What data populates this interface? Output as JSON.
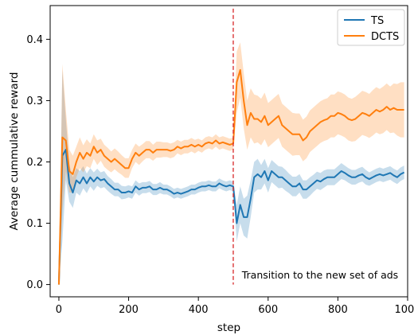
{
  "chart_data": {
    "type": "line",
    "xlabel": "step",
    "ylabel": "Average cummulative reward",
    "xlim": [
      -25,
      1000
    ],
    "ylim": [
      -0.02,
      0.455
    ],
    "xticks": [
      0,
      200,
      400,
      600,
      800,
      1000
    ],
    "yticks": [
      0.0,
      0.1,
      0.2,
      0.3,
      0.4
    ],
    "xtick_labels": [
      "0",
      "200",
      "400",
      "600",
      "800",
      "1000"
    ],
    "ytick_labels": [
      "0.0",
      "0.1",
      "0.2",
      "0.3",
      "0.4"
    ],
    "grid": false,
    "legend_position": "top-right",
    "vline": {
      "x": 500,
      "y_top": 0.45,
      "color": "#d62728",
      "style": "dashed"
    },
    "annotation": {
      "text": "Transition to the new set of ads",
      "x": 520,
      "y": 0.015
    },
    "x": [
      0,
      10,
      20,
      30,
      40,
      50,
      60,
      70,
      80,
      90,
      100,
      110,
      120,
      130,
      140,
      150,
      160,
      170,
      180,
      190,
      200,
      210,
      220,
      230,
      240,
      250,
      260,
      270,
      280,
      290,
      300,
      310,
      320,
      330,
      340,
      350,
      360,
      370,
      380,
      390,
      400,
      410,
      420,
      430,
      440,
      450,
      460,
      470,
      480,
      490,
      500,
      510,
      520,
      530,
      540,
      550,
      560,
      570,
      580,
      590,
      600,
      610,
      620,
      630,
      640,
      650,
      660,
      670,
      680,
      690,
      700,
      710,
      720,
      730,
      740,
      750,
      760,
      770,
      780,
      790,
      800,
      810,
      820,
      830,
      840,
      850,
      860,
      870,
      880,
      890,
      900,
      910,
      920,
      930,
      940,
      950,
      960,
      970,
      980,
      990
    ],
    "series": [
      {
        "name": "TS",
        "color": "#1f77b4",
        "values": [
          0.0,
          0.21,
          0.22,
          0.165,
          0.15,
          0.17,
          0.165,
          0.175,
          0.165,
          0.175,
          0.168,
          0.175,
          0.17,
          0.172,
          0.165,
          0.16,
          0.155,
          0.155,
          0.15,
          0.15,
          0.152,
          0.15,
          0.16,
          0.155,
          0.158,
          0.158,
          0.16,
          0.155,
          0.155,
          0.158,
          0.155,
          0.155,
          0.152,
          0.148,
          0.15,
          0.148,
          0.15,
          0.152,
          0.155,
          0.155,
          0.158,
          0.16,
          0.16,
          0.162,
          0.16,
          0.16,
          0.165,
          0.162,
          0.16,
          0.162,
          0.16,
          0.1,
          0.13,
          0.11,
          0.11,
          0.14,
          0.175,
          0.18,
          0.175,
          0.185,
          0.17,
          0.185,
          0.18,
          0.175,
          0.175,
          0.17,
          0.165,
          0.16,
          0.16,
          0.165,
          0.155,
          0.155,
          0.16,
          0.165,
          0.17,
          0.168,
          0.172,
          0.175,
          0.175,
          0.175,
          0.18,
          0.185,
          0.182,
          0.178,
          0.175,
          0.175,
          0.178,
          0.18,
          0.175,
          0.172,
          0.175,
          0.178,
          0.18,
          0.178,
          0.18,
          0.182,
          0.178,
          0.175,
          0.18,
          0.183
        ],
        "band_halfwidth": [
          0.0,
          0.14,
          0.05,
          0.03,
          0.025,
          0.02,
          0.02,
          0.018,
          0.016,
          0.015,
          0.015,
          0.014,
          0.013,
          0.013,
          0.012,
          0.012,
          0.011,
          0.011,
          0.011,
          0.01,
          0.01,
          0.01,
          0.01,
          0.01,
          0.009,
          0.009,
          0.009,
          0.009,
          0.009,
          0.009,
          0.008,
          0.008,
          0.008,
          0.008,
          0.008,
          0.008,
          0.008,
          0.008,
          0.008,
          0.008,
          0.008,
          0.008,
          0.008,
          0.008,
          0.008,
          0.008,
          0.008,
          0.008,
          0.008,
          0.008,
          0.008,
          0.03,
          0.03,
          0.03,
          0.035,
          0.03,
          0.025,
          0.025,
          0.02,
          0.02,
          0.02,
          0.018,
          0.018,
          0.018,
          0.017,
          0.017,
          0.016,
          0.016,
          0.016,
          0.015,
          0.015,
          0.015,
          0.015,
          0.014,
          0.014,
          0.014,
          0.014,
          0.013,
          0.013,
          0.013,
          0.013,
          0.013,
          0.012,
          0.012,
          0.012,
          0.012,
          0.012,
          0.012,
          0.012,
          0.011,
          0.011,
          0.011,
          0.011,
          0.011,
          0.011,
          0.011,
          0.011,
          0.011,
          0.011,
          0.011
        ]
      },
      {
        "name": "DCTS",
        "color": "#ff7f0e",
        "values": [
          0.0,
          0.24,
          0.235,
          0.185,
          0.18,
          0.2,
          0.215,
          0.205,
          0.215,
          0.21,
          0.225,
          0.215,
          0.22,
          0.21,
          0.205,
          0.2,
          0.205,
          0.2,
          0.195,
          0.19,
          0.19,
          0.205,
          0.215,
          0.21,
          0.215,
          0.22,
          0.22,
          0.215,
          0.22,
          0.22,
          0.22,
          0.22,
          0.218,
          0.22,
          0.225,
          0.222,
          0.225,
          0.225,
          0.228,
          0.225,
          0.228,
          0.225,
          0.23,
          0.232,
          0.23,
          0.235,
          0.23,
          0.232,
          0.23,
          0.228,
          0.23,
          0.33,
          0.35,
          0.3,
          0.26,
          0.28,
          0.27,
          0.27,
          0.265,
          0.275,
          0.26,
          0.265,
          0.27,
          0.275,
          0.26,
          0.255,
          0.25,
          0.245,
          0.245,
          0.245,
          0.235,
          0.24,
          0.25,
          0.255,
          0.26,
          0.265,
          0.268,
          0.27,
          0.275,
          0.275,
          0.28,
          0.278,
          0.275,
          0.27,
          0.268,
          0.27,
          0.275,
          0.28,
          0.278,
          0.275,
          0.28,
          0.285,
          0.282,
          0.285,
          0.29,
          0.285,
          0.288,
          0.285,
          0.285,
          0.285
        ],
        "band_halfwidth": [
          0.0,
          0.12,
          0.05,
          0.035,
          0.03,
          0.025,
          0.025,
          0.022,
          0.022,
          0.02,
          0.02,
          0.02,
          0.018,
          0.018,
          0.018,
          0.017,
          0.017,
          0.017,
          0.016,
          0.016,
          0.016,
          0.015,
          0.015,
          0.015,
          0.014,
          0.014,
          0.014,
          0.013,
          0.013,
          0.013,
          0.012,
          0.012,
          0.012,
          0.012,
          0.011,
          0.011,
          0.011,
          0.011,
          0.011,
          0.011,
          0.01,
          0.01,
          0.01,
          0.01,
          0.01,
          0.01,
          0.01,
          0.01,
          0.01,
          0.01,
          0.01,
          0.05,
          0.045,
          0.045,
          0.04,
          0.04,
          0.04,
          0.038,
          0.038,
          0.038,
          0.036,
          0.036,
          0.036,
          0.036,
          0.035,
          0.035,
          0.035,
          0.035,
          0.034,
          0.034,
          0.034,
          0.034,
          0.034,
          0.034,
          0.034,
          0.034,
          0.034,
          0.034,
          0.035,
          0.035,
          0.035,
          0.035,
          0.035,
          0.035,
          0.035,
          0.036,
          0.036,
          0.036,
          0.036,
          0.036,
          0.037,
          0.037,
          0.037,
          0.038,
          0.038,
          0.038,
          0.04,
          0.042,
          0.045,
          0.045
        ]
      }
    ]
  }
}
